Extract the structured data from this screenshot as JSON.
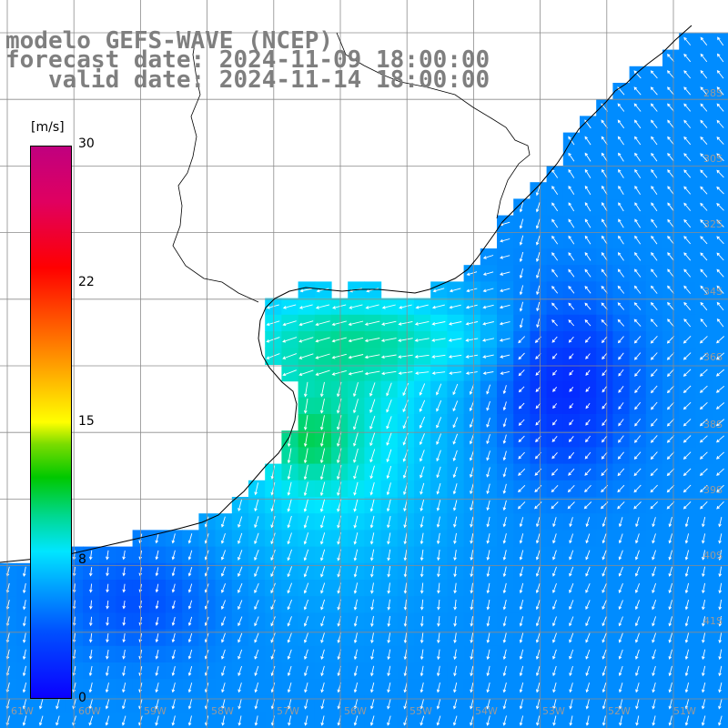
{
  "title": {
    "line1": "modelo GEFS-WAVE (NCEP)",
    "line2": "forecast date: 2024-11-09 18:00:00",
    "line3": "   valid date: 2024-11-14 18:00:00"
  },
  "colorbar": {
    "units": "[m/s]",
    "ticks": [
      "30",
      "22",
      "15",
      "8",
      "0"
    ],
    "min": 0,
    "max": 30,
    "colors": [
      "#0a00ff",
      "#00a0ff",
      "#00e6ff",
      "#00c800",
      "#ffff00",
      "#ff6a00",
      "#ff0000",
      "#c0007f"
    ]
  },
  "lat_labels": [
    "28S",
    "30S",
    "32S",
    "34S",
    "36S",
    "38S",
    "39S",
    "40S",
    "41S"
  ],
  "lon_labels": [
    "61W",
    "60W",
    "59W",
    "58W",
    "57W",
    "56W",
    "55W",
    "54W",
    "53W",
    "52W",
    "51W"
  ],
  "land_color": "#ffffff",
  "grid_color": "#8c8c8c"
}
